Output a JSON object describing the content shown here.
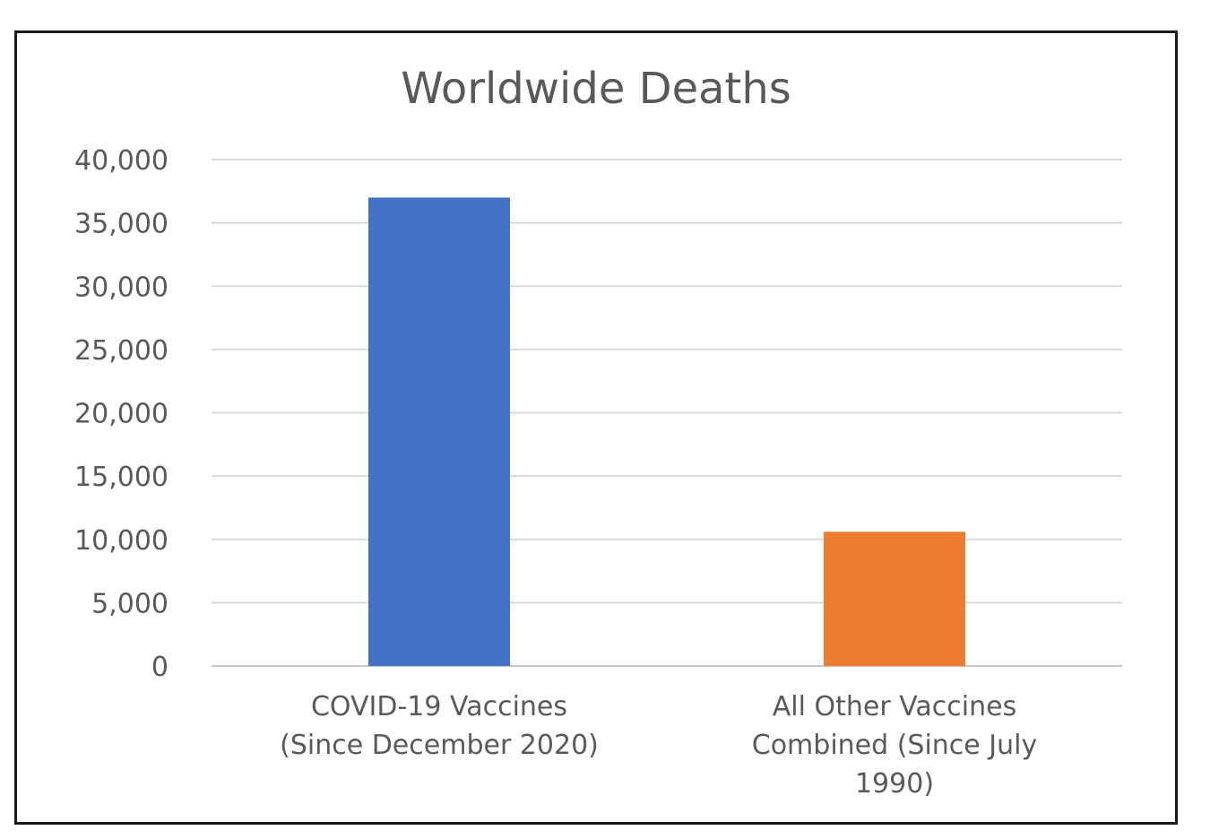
{
  "chart_data": {
    "type": "bar",
    "title": "Worldwide Deaths",
    "xlabel": "",
    "ylabel": "",
    "categories": [
      [
        "COVID-19 Vaccines",
        "(Since December 2020)"
      ],
      [
        "All Other Vaccines",
        "Combined (Since July",
        "1990)"
      ]
    ],
    "values": [
      37000,
      10600
    ],
    "colors": [
      "#4472C4",
      "#ED7D31"
    ],
    "ylim": [
      0,
      40000
    ],
    "yticks": [
      0,
      5000,
      10000,
      15000,
      20000,
      25000,
      30000,
      35000,
      40000
    ],
    "ytick_labels": [
      "0",
      "5,000",
      "10,000",
      "15,000",
      "20,000",
      "25,000",
      "30,000",
      "35,000",
      "40,000"
    ],
    "grid": true,
    "legend": "none"
  }
}
